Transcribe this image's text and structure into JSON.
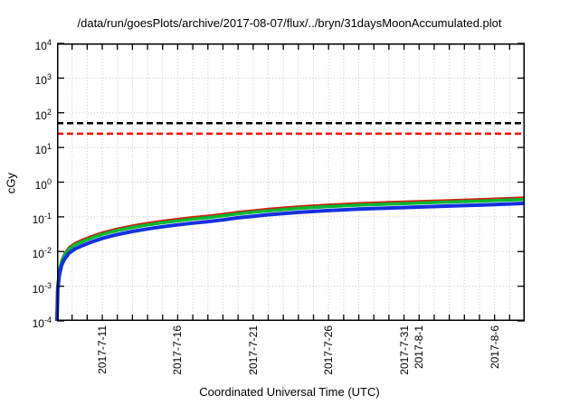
{
  "title": "/data/run/goesPlots/archive/2017-08-07/flux/../bryn/31daysMoonAccumulated.plot",
  "chart_data": {
    "type": "line",
    "title": "/data/run/goesPlots/archive/2017-08-07/flux/../bryn/31daysMoonAccumulated.plot",
    "xlabel": "Coordinated Universal Time (UTC)",
    "ylabel": "cGy",
    "y_scale": "log10",
    "ylim_exponents": [
      -4,
      4
    ],
    "y_tick_exponents": [
      4,
      3,
      2,
      1,
      0,
      -1,
      -2,
      -3,
      -4
    ],
    "y_tick_base": "10",
    "x_range_days": 31,
    "x_minor_tick_interval_days": 1,
    "x_major_ticks": [
      {
        "day": 3,
        "label": "2017-7-11"
      },
      {
        "day": 8,
        "label": "2017-7-16"
      },
      {
        "day": 13,
        "label": "2017-7-21"
      },
      {
        "day": 18,
        "label": "2017-7-26"
      },
      {
        "day": 23,
        "label": "2017-7-31"
      },
      {
        "day": 24,
        "label": "2017-8-1"
      },
      {
        "day": 29,
        "label": "2017-8-6"
      }
    ],
    "grid": {
      "color": "#c3c3c3",
      "style": "dotted",
      "vertical": "every day",
      "horizontal": "every decade"
    },
    "legend": "none",
    "thresholds": [
      {
        "name": "black-dashed-limit",
        "value_cgy": 50,
        "color": "#000000",
        "style": "dashed"
      },
      {
        "name": "red-dashed-limit",
        "value_cgy": 25,
        "color": "#ff0000",
        "style": "dashed"
      }
    ],
    "series": [
      {
        "name": "red-accumulated-dose",
        "color": "#cc2211",
        "line_width": 2,
        "x_days": [
          0,
          0.05,
          0.15,
          0.3,
          0.5,
          0.8,
          1.2,
          1.7,
          2.3,
          3,
          4,
          5,
          6,
          7,
          8,
          9,
          10,
          11,
          12,
          13,
          14,
          16,
          18,
          20,
          22,
          24,
          26,
          28,
          30,
          31
        ],
        "values_cgy": [
          0.00015,
          0.0012,
          0.003,
          0.006,
          0.009,
          0.0135,
          0.018,
          0.0225,
          0.0285,
          0.036,
          0.0465,
          0.057,
          0.0675,
          0.078,
          0.0885,
          0.099,
          0.1095,
          0.123,
          0.141,
          0.156,
          0.1725,
          0.2025,
          0.228,
          0.252,
          0.27,
          0.288,
          0.3075,
          0.327,
          0.3525,
          0.3675
        ]
      },
      {
        "name": "green-accumulated-dose",
        "color": "#00b832",
        "line_width": 3.5,
        "x_days": [
          0,
          0.05,
          0.15,
          0.3,
          0.5,
          0.8,
          1.2,
          1.7,
          2.3,
          3,
          4,
          5,
          6,
          7,
          8,
          9,
          10,
          11,
          12,
          13,
          14,
          16,
          18,
          20,
          22,
          24,
          26,
          28,
          30,
          31
        ],
        "values_cgy": [
          0.00013,
          0.001,
          0.0026,
          0.0052,
          0.0078,
          0.0117,
          0.0156,
          0.0195,
          0.0247,
          0.0312,
          0.0403,
          0.0494,
          0.0585,
          0.0676,
          0.0767,
          0.0858,
          0.0949,
          0.1066,
          0.1222,
          0.1352,
          0.1495,
          0.1755,
          0.1976,
          0.2184,
          0.234,
          0.2496,
          0.2665,
          0.2834,
          0.3055,
          0.3185
        ]
      },
      {
        "name": "blue-accumulated-dose",
        "color": "#1430e0",
        "line_width": 4,
        "x_days": [
          0,
          0.05,
          0.15,
          0.3,
          0.5,
          0.8,
          1.2,
          1.7,
          2.3,
          3,
          4,
          5,
          6,
          7,
          8,
          9,
          10,
          11,
          12,
          13,
          14,
          16,
          18,
          20,
          22,
          24,
          26,
          28,
          30,
          31
        ],
        "values_cgy": [
          0.0001,
          0.0008,
          0.002,
          0.004,
          0.006,
          0.009,
          0.012,
          0.015,
          0.019,
          0.024,
          0.031,
          0.038,
          0.045,
          0.052,
          0.059,
          0.066,
          0.073,
          0.082,
          0.094,
          0.104,
          0.115,
          0.135,
          0.152,
          0.168,
          0.18,
          0.192,
          0.205,
          0.218,
          0.235,
          0.245
        ]
      }
    ]
  }
}
